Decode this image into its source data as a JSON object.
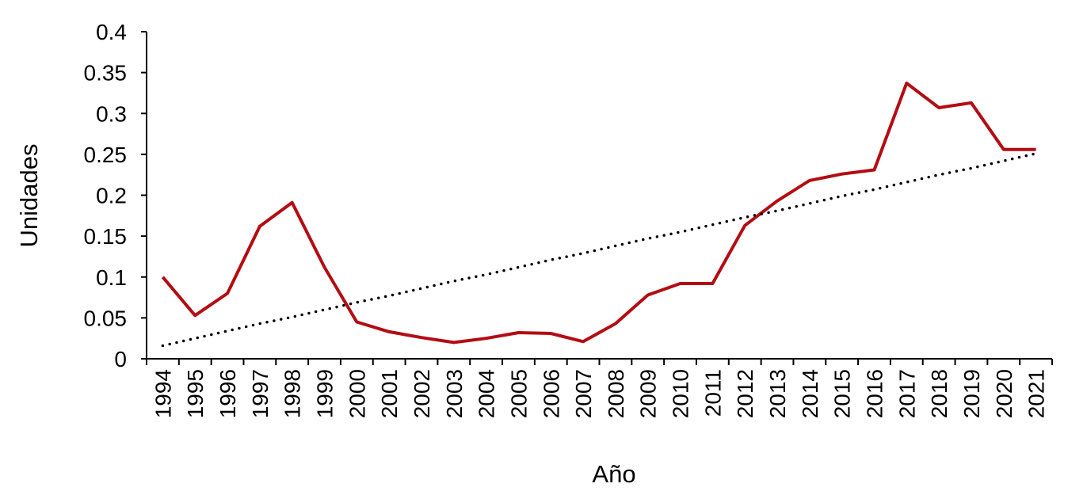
{
  "chart_data": {
    "type": "line",
    "title": "",
    "xlabel": "Año",
    "ylabel": "Unidades",
    "ylim": [
      0,
      0.4
    ],
    "yticks": [
      "0",
      "0.05",
      "0.1",
      "0.15",
      "0.2",
      "0.25",
      "0.3",
      "0.35",
      "0.4"
    ],
    "categories": [
      "1994",
      "1995",
      "1996",
      "1997",
      "1998",
      "1999",
      "2000",
      "2001",
      "2002",
      "2003",
      "2004",
      "2005",
      "2006",
      "2007",
      "2008",
      "2009",
      "2010",
      "2011",
      "2012",
      "2013",
      "2014",
      "2015",
      "2016",
      "2017",
      "2018",
      "2019",
      "2020",
      "2021"
    ],
    "series": [
      {
        "values": [
          0.1,
          0.053,
          0.08,
          0.162,
          0.191,
          0.112,
          0.045,
          0.033,
          0.026,
          0.02,
          0.025,
          0.032,
          0.031,
          0.021,
          0.043,
          0.078,
          0.092,
          0.092,
          0.163,
          0.193,
          0.218,
          0.226,
          0.231,
          0.337,
          0.307,
          0.313,
          0.256,
          0.256
        ],
        "color": "#b30c12",
        "style": "solid"
      },
      {
        "values": [
          0.016,
          0.025,
          0.034,
          0.043,
          0.051,
          0.06,
          0.069,
          0.077,
          0.086,
          0.095,
          0.103,
          0.112,
          0.121,
          0.129,
          0.138,
          0.147,
          0.155,
          0.164,
          0.173,
          0.181,
          0.19,
          0.199,
          0.207,
          0.216,
          0.225,
          0.233,
          0.242,
          0.251
        ],
        "color": "#000000",
        "style": "dotted"
      }
    ],
    "grid": false,
    "legend": "none"
  }
}
